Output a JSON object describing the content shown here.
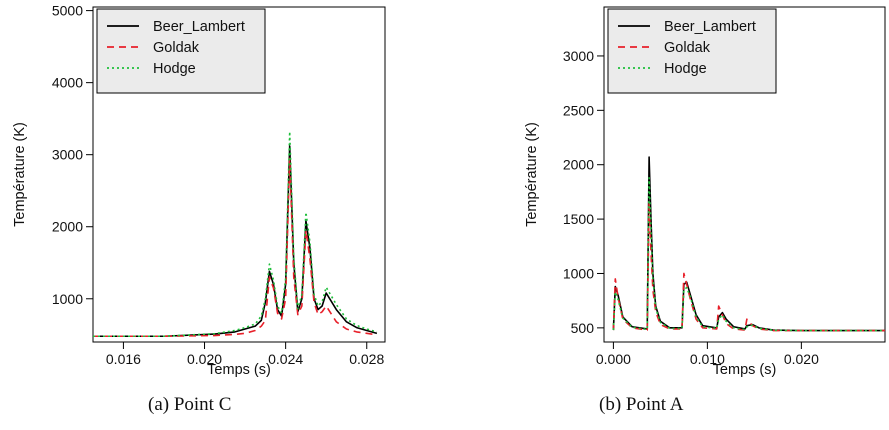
{
  "captions": [
    "(a)  Point C",
    "(b)  Point A"
  ],
  "chart_data": [
    {
      "type": "line",
      "xlabel": "Temps (s)",
      "ylabel": "Température (K)",
      "xlim": [
        0.0145,
        0.0289
      ],
      "ylim": [
        400,
        5050
      ],
      "xticks": [
        0.016,
        0.02,
        0.024,
        0.028
      ],
      "xtick_labels": [
        "0.016",
        "0.020",
        "0.024",
        "0.028"
      ],
      "yticks": [
        1000,
        2000,
        3000,
        4000,
        5000
      ],
      "ytick_labels": [
        "1000",
        "2000",
        "3000",
        "4000",
        "5000"
      ],
      "legend_position": "top-left",
      "grid": false,
      "series": [
        {
          "name": "Beer_Lambert",
          "color": "#000000",
          "dash": "solid",
          "x": [
            0.0145,
            0.018,
            0.0205,
            0.0215,
            0.022,
            0.0225,
            0.0228,
            0.023,
            0.0232,
            0.0234,
            0.0236,
            0.0238,
            0.024,
            0.0242,
            0.0244,
            0.0246,
            0.0248,
            0.025,
            0.0252,
            0.0254,
            0.0256,
            0.0258,
            0.026,
            0.0265,
            0.027,
            0.0275,
            0.028,
            0.0285
          ],
          "y": [
            480,
            480,
            510,
            540,
            580,
            620,
            700,
            950,
            1380,
            1200,
            850,
            760,
            1200,
            3120,
            1500,
            820,
            1000,
            2080,
            1700,
            1000,
            850,
            900,
            1080,
            850,
            680,
            600,
            560,
            520
          ]
        },
        {
          "name": "Goldak",
          "color": "#e8202a",
          "dash": "dashed",
          "x": [
            0.0145,
            0.018,
            0.0205,
            0.0215,
            0.022,
            0.0225,
            0.0228,
            0.023,
            0.0232,
            0.0234,
            0.0236,
            0.0238,
            0.024,
            0.0242,
            0.0244,
            0.0246,
            0.0248,
            0.025,
            0.0252,
            0.0254,
            0.0256,
            0.0258,
            0.026,
            0.0265,
            0.027,
            0.0275,
            0.028,
            0.0285
          ],
          "y": [
            480,
            480,
            490,
            505,
            520,
            560,
            620,
            700,
            1300,
            1150,
            800,
            720,
            1000,
            2950,
            1300,
            780,
            900,
            1950,
            1550,
            950,
            780,
            820,
            900,
            680,
            580,
            540,
            520,
            500
          ]
        },
        {
          "name": "Hodge",
          "color": "#1fbf3b",
          "dash": "dotted",
          "x": [
            0.0145,
            0.018,
            0.0205,
            0.0215,
            0.022,
            0.0225,
            0.0228,
            0.023,
            0.0232,
            0.0234,
            0.0236,
            0.0238,
            0.024,
            0.0242,
            0.0244,
            0.0246,
            0.0248,
            0.025,
            0.0252,
            0.0254,
            0.0256,
            0.0258,
            0.026,
            0.0265,
            0.027,
            0.0275,
            0.028,
            0.0285
          ],
          "y": [
            480,
            480,
            515,
            560,
            600,
            650,
            760,
            1000,
            1480,
            1260,
            900,
            800,
            1280,
            3320,
            1580,
            860,
            1060,
            2200,
            1780,
            1060,
            900,
            960,
            1160,
            920,
            720,
            630,
            580,
            540
          ]
        }
      ]
    },
    {
      "type": "line",
      "xlabel": "Temps (s)",
      "ylabel": "Température (K)",
      "xlim": [
        -0.001,
        0.0289
      ],
      "ylim": [
        370,
        3450
      ],
      "xticks": [
        0.0,
        0.01,
        0.02
      ],
      "xtick_labels": [
        "0.000",
        "0.010",
        "0.020"
      ],
      "yticks": [
        500,
        1000,
        1500,
        2000,
        2500,
        3000
      ],
      "ytick_labels": [
        "500",
        "1000",
        "1500",
        "2000",
        "2500",
        "3000"
      ],
      "legend_position": "top-left",
      "grid": false,
      "series": [
        {
          "name": "Beer_Lambert",
          "color": "#000000",
          "dash": "solid",
          "x": [
            0.0,
            0.0002,
            0.0005,
            0.001,
            0.002,
            0.0036,
            0.0038,
            0.004,
            0.0042,
            0.0045,
            0.005,
            0.006,
            0.0073,
            0.0075,
            0.0078,
            0.0082,
            0.0088,
            0.0095,
            0.011,
            0.0112,
            0.0116,
            0.012,
            0.0128,
            0.014,
            0.0142,
            0.0148,
            0.0155,
            0.017,
            0.02,
            0.025,
            0.0289
          ],
          "y": [
            480,
            880,
            800,
            600,
            510,
            490,
            2070,
            1500,
            1000,
            700,
            560,
            500,
            500,
            900,
            920,
            800,
            620,
            520,
            500,
            600,
            640,
            580,
            510,
            490,
            520,
            530,
            500,
            480,
            475,
            475,
            475
          ]
        },
        {
          "name": "Goldak",
          "color": "#e8202a",
          "dash": "dashed",
          "x": [
            0.0,
            0.0002,
            0.0005,
            0.001,
            0.002,
            0.0036,
            0.0038,
            0.004,
            0.0042,
            0.0045,
            0.005,
            0.006,
            0.0073,
            0.0075,
            0.0078,
            0.0082,
            0.0088,
            0.0095,
            0.011,
            0.0112,
            0.0116,
            0.012,
            0.0128,
            0.014,
            0.0142,
            0.0148,
            0.0155,
            0.017,
            0.02,
            0.025,
            0.0289
          ],
          "y": [
            480,
            950,
            780,
            580,
            500,
            480,
            1650,
            1200,
            850,
            650,
            530,
            490,
            490,
            1000,
            900,
            760,
            580,
            500,
            490,
            700,
            620,
            540,
            490,
            480,
            580,
            520,
            490,
            475,
            475,
            475,
            475
          ]
        },
        {
          "name": "Hodge",
          "color": "#1fbf3b",
          "dash": "dotted",
          "x": [
            0.0,
            0.0002,
            0.0005,
            0.001,
            0.002,
            0.0036,
            0.0038,
            0.004,
            0.0042,
            0.0045,
            0.005,
            0.006,
            0.0073,
            0.0075,
            0.0078,
            0.0082,
            0.0088,
            0.0095,
            0.011,
            0.0112,
            0.0116,
            0.012,
            0.0128,
            0.014,
            0.0142,
            0.0148,
            0.0155,
            0.017,
            0.02,
            0.025,
            0.0289
          ],
          "y": [
            480,
            830,
            760,
            590,
            505,
            485,
            1880,
            1400,
            950,
            680,
            550,
            495,
            495,
            850,
            870,
            780,
            600,
            510,
            495,
            580,
            620,
            560,
            500,
            485,
            510,
            525,
            495,
            478,
            475,
            475,
            475
          ]
        }
      ]
    }
  ]
}
